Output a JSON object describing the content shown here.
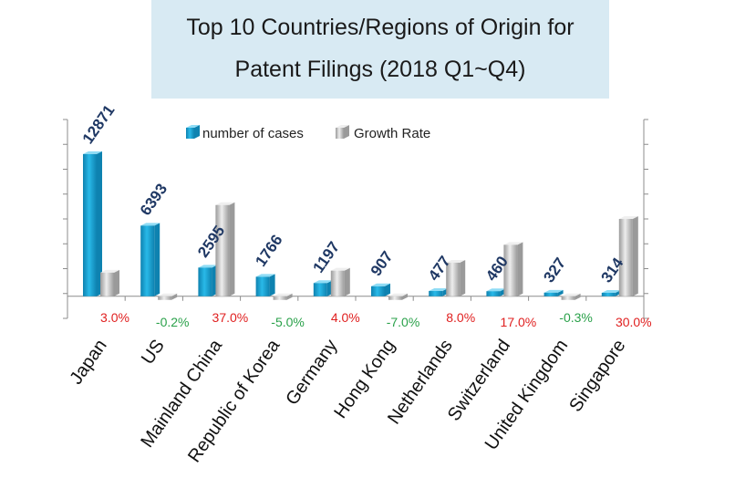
{
  "chart_data": {
    "type": "bar",
    "title_lines": [
      "Top 10 Countries/Regions of Origin for",
      "Patent Filings (2018 Q1~Q4)"
    ],
    "categories": [
      "Japan",
      "US",
      "Mainland China",
      "Republic of Korea",
      "Germany",
      "Hong Kong",
      "Netherlands",
      "Switzerland",
      "United Kingdom",
      "Singapore"
    ],
    "series": [
      {
        "name": "number of cases",
        "axis": "left",
        "values": [
          12871,
          6393,
          2595,
          1766,
          1197,
          907,
          477,
          460,
          327,
          314
        ],
        "labels": [
          "12871",
          "6393",
          "2595",
          "1766",
          "1197",
          "907",
          "477",
          "460",
          "327",
          "314"
        ]
      },
      {
        "name": "Growth Rate",
        "axis": "right",
        "values": [
          3.0,
          -0.2,
          37.0,
          -5.0,
          4.0,
          -7.0,
          8.0,
          17.0,
          -0.3,
          30.0
        ],
        "labels": [
          "3.0%",
          "-0.2%",
          "37.0%",
          "-5.0%",
          "4.0%",
          "-7.0%",
          "8.0%",
          "17.0%",
          "-0.3%",
          "30.0%"
        ]
      }
    ],
    "ylim_left": [
      -2000,
      16000
    ],
    "ylim_right": [
      -20,
      80
    ],
    "legend_position": "top-center",
    "colors": {
      "cases": "#29b9e8",
      "cases_dark": "#0e82b0",
      "growth": "#c9c9c9",
      "growth_dark": "#9a9a9a",
      "value_label": "#1f3864",
      "positive": "#e02020",
      "negative": "#2aa14a"
    }
  }
}
